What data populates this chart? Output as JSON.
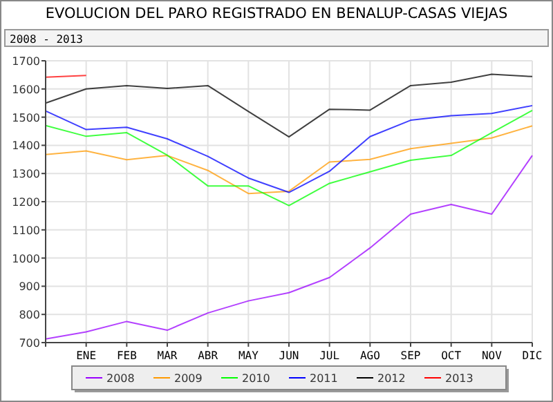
{
  "chart_data": {
    "type": "line",
    "title": "EVOLUCION DEL PARO REGISTRADO EN BENALUP-CASAS VIEJAS",
    "subtitle": "2008 - 2013",
    "categories": [
      null,
      "ENE",
      "FEB",
      "MAR",
      "ABR",
      "MAY",
      "JUN",
      "JUL",
      "AGO",
      "SEP",
      "OCT",
      "NOV",
      "DIC"
    ],
    "series": [
      {
        "name": "2008",
        "color": "#9900ff",
        "values": [
          713,
          738,
          775,
          744,
          805,
          848,
          877,
          931,
          1036,
          1156,
          1190,
          1156,
          1364
        ]
      },
      {
        "name": "2009",
        "color": "#ff9900",
        "values": [
          1367,
          1380,
          1349,
          1364,
          1311,
          1229,
          1237,
          1341,
          1350,
          1388,
          1407,
          1426,
          1469
        ]
      },
      {
        "name": "2010",
        "color": "#00ff00",
        "values": [
          1470,
          1432,
          1445,
          1365,
          1256,
          1256,
          1186,
          1265,
          1306,
          1347,
          1364,
          1445,
          1524
        ]
      },
      {
        "name": "2011",
        "color": "#0000ff",
        "values": [
          1522,
          1456,
          1464,
          1423,
          1361,
          1284,
          1233,
          1308,
          1431,
          1489,
          1505,
          1513,
          1541
        ]
      },
      {
        "name": "2012",
        "color": "#000000",
        "values": [
          1550,
          1600,
          1612,
          1602,
          1612,
          1520,
          1430,
          1528,
          1525,
          1612,
          1624,
          1652,
          1644
        ]
      },
      {
        "name": "2013",
        "color": "#ff0000",
        "values": [
          1642,
          1648,
          null,
          null,
          null,
          null,
          null,
          null,
          null,
          null,
          null,
          null,
          null
        ]
      }
    ],
    "ylim": [
      700,
      1700
    ],
    "yticks": [
      700,
      800,
      900,
      1000,
      1100,
      1200,
      1300,
      1400,
      1500,
      1600,
      1700
    ],
    "grid": true,
    "legend": "bottom",
    "marker": "none",
    "line_style": "solid"
  }
}
